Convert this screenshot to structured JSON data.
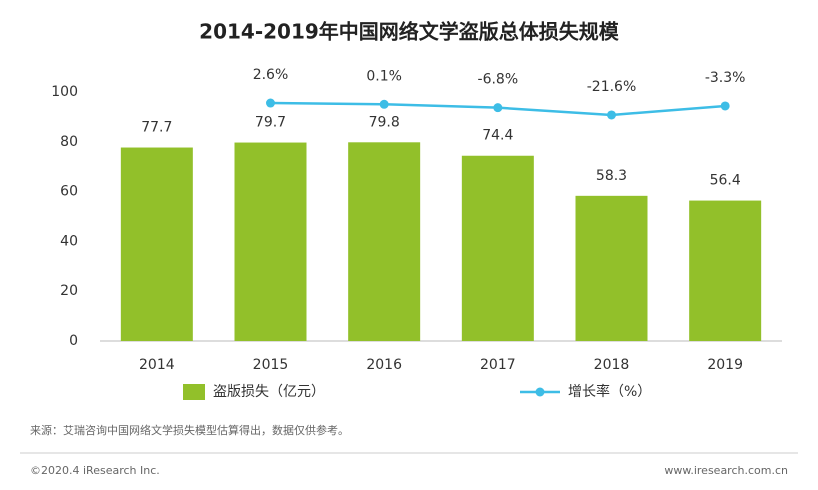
{
  "chart_data": {
    "type": "bar",
    "title": "2014-2019年中国网络文学盗版总体损失规模",
    "categories": [
      "2014",
      "2015",
      "2016",
      "2017",
      "2018",
      "2019"
    ],
    "series": [
      {
        "name": "盗版损失（亿元）",
        "type": "bar",
        "color": "#92c02a",
        "values": [
          77.7,
          79.7,
          79.8,
          74.4,
          58.3,
          56.4
        ]
      },
      {
        "name": "增长率（%）",
        "type": "line",
        "axis": "y2",
        "color": "#3dbde6",
        "values": [
          null,
          2.6,
          0.1,
          -6.8,
          -21.6,
          -3.3
        ],
        "value_labels": [
          null,
          "2.6%",
          "0.1%",
          "-6.8%",
          "-21.6%",
          "-3.3%"
        ]
      }
    ],
    "ylim": [
      0,
      100
    ],
    "yticks": [
      0,
      20,
      40,
      60,
      80,
      100
    ],
    "y2lim": [
      -480,
      25
    ],
    "grid": false,
    "source": "来源：艾瑞咨询中国网络文学损失模型估算得出，数据仅供参考。",
    "copyright": "©2020.4 iResearch Inc.",
    "website": "www.iresearch.com.cn"
  }
}
